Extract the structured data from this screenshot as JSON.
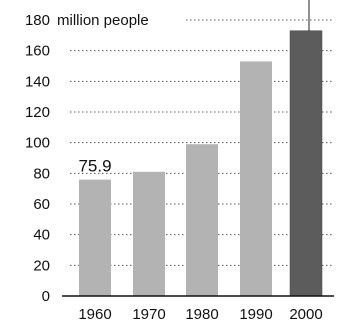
{
  "chart_data": {
    "type": "bar",
    "categories": [
      "1960",
      "1970",
      "1980",
      "1990",
      "2000"
    ],
    "values": [
      75.9,
      81,
      99,
      153,
      173
    ],
    "ylim": [
      0,
      180
    ],
    "yticks": [
      0,
      20,
      40,
      60,
      80,
      100,
      120,
      140,
      160,
      180
    ],
    "y_unit_label": "million people",
    "data_labels": [
      {
        "category": "1960",
        "text": "75.9"
      }
    ],
    "grid": "dotted horizontal",
    "bar_colors": [
      "#b3b3b3",
      "#b3b3b3",
      "#b3b3b3",
      "#b3b3b3",
      "#5c5c5c"
    ],
    "annotation_line_on": "2000"
  }
}
